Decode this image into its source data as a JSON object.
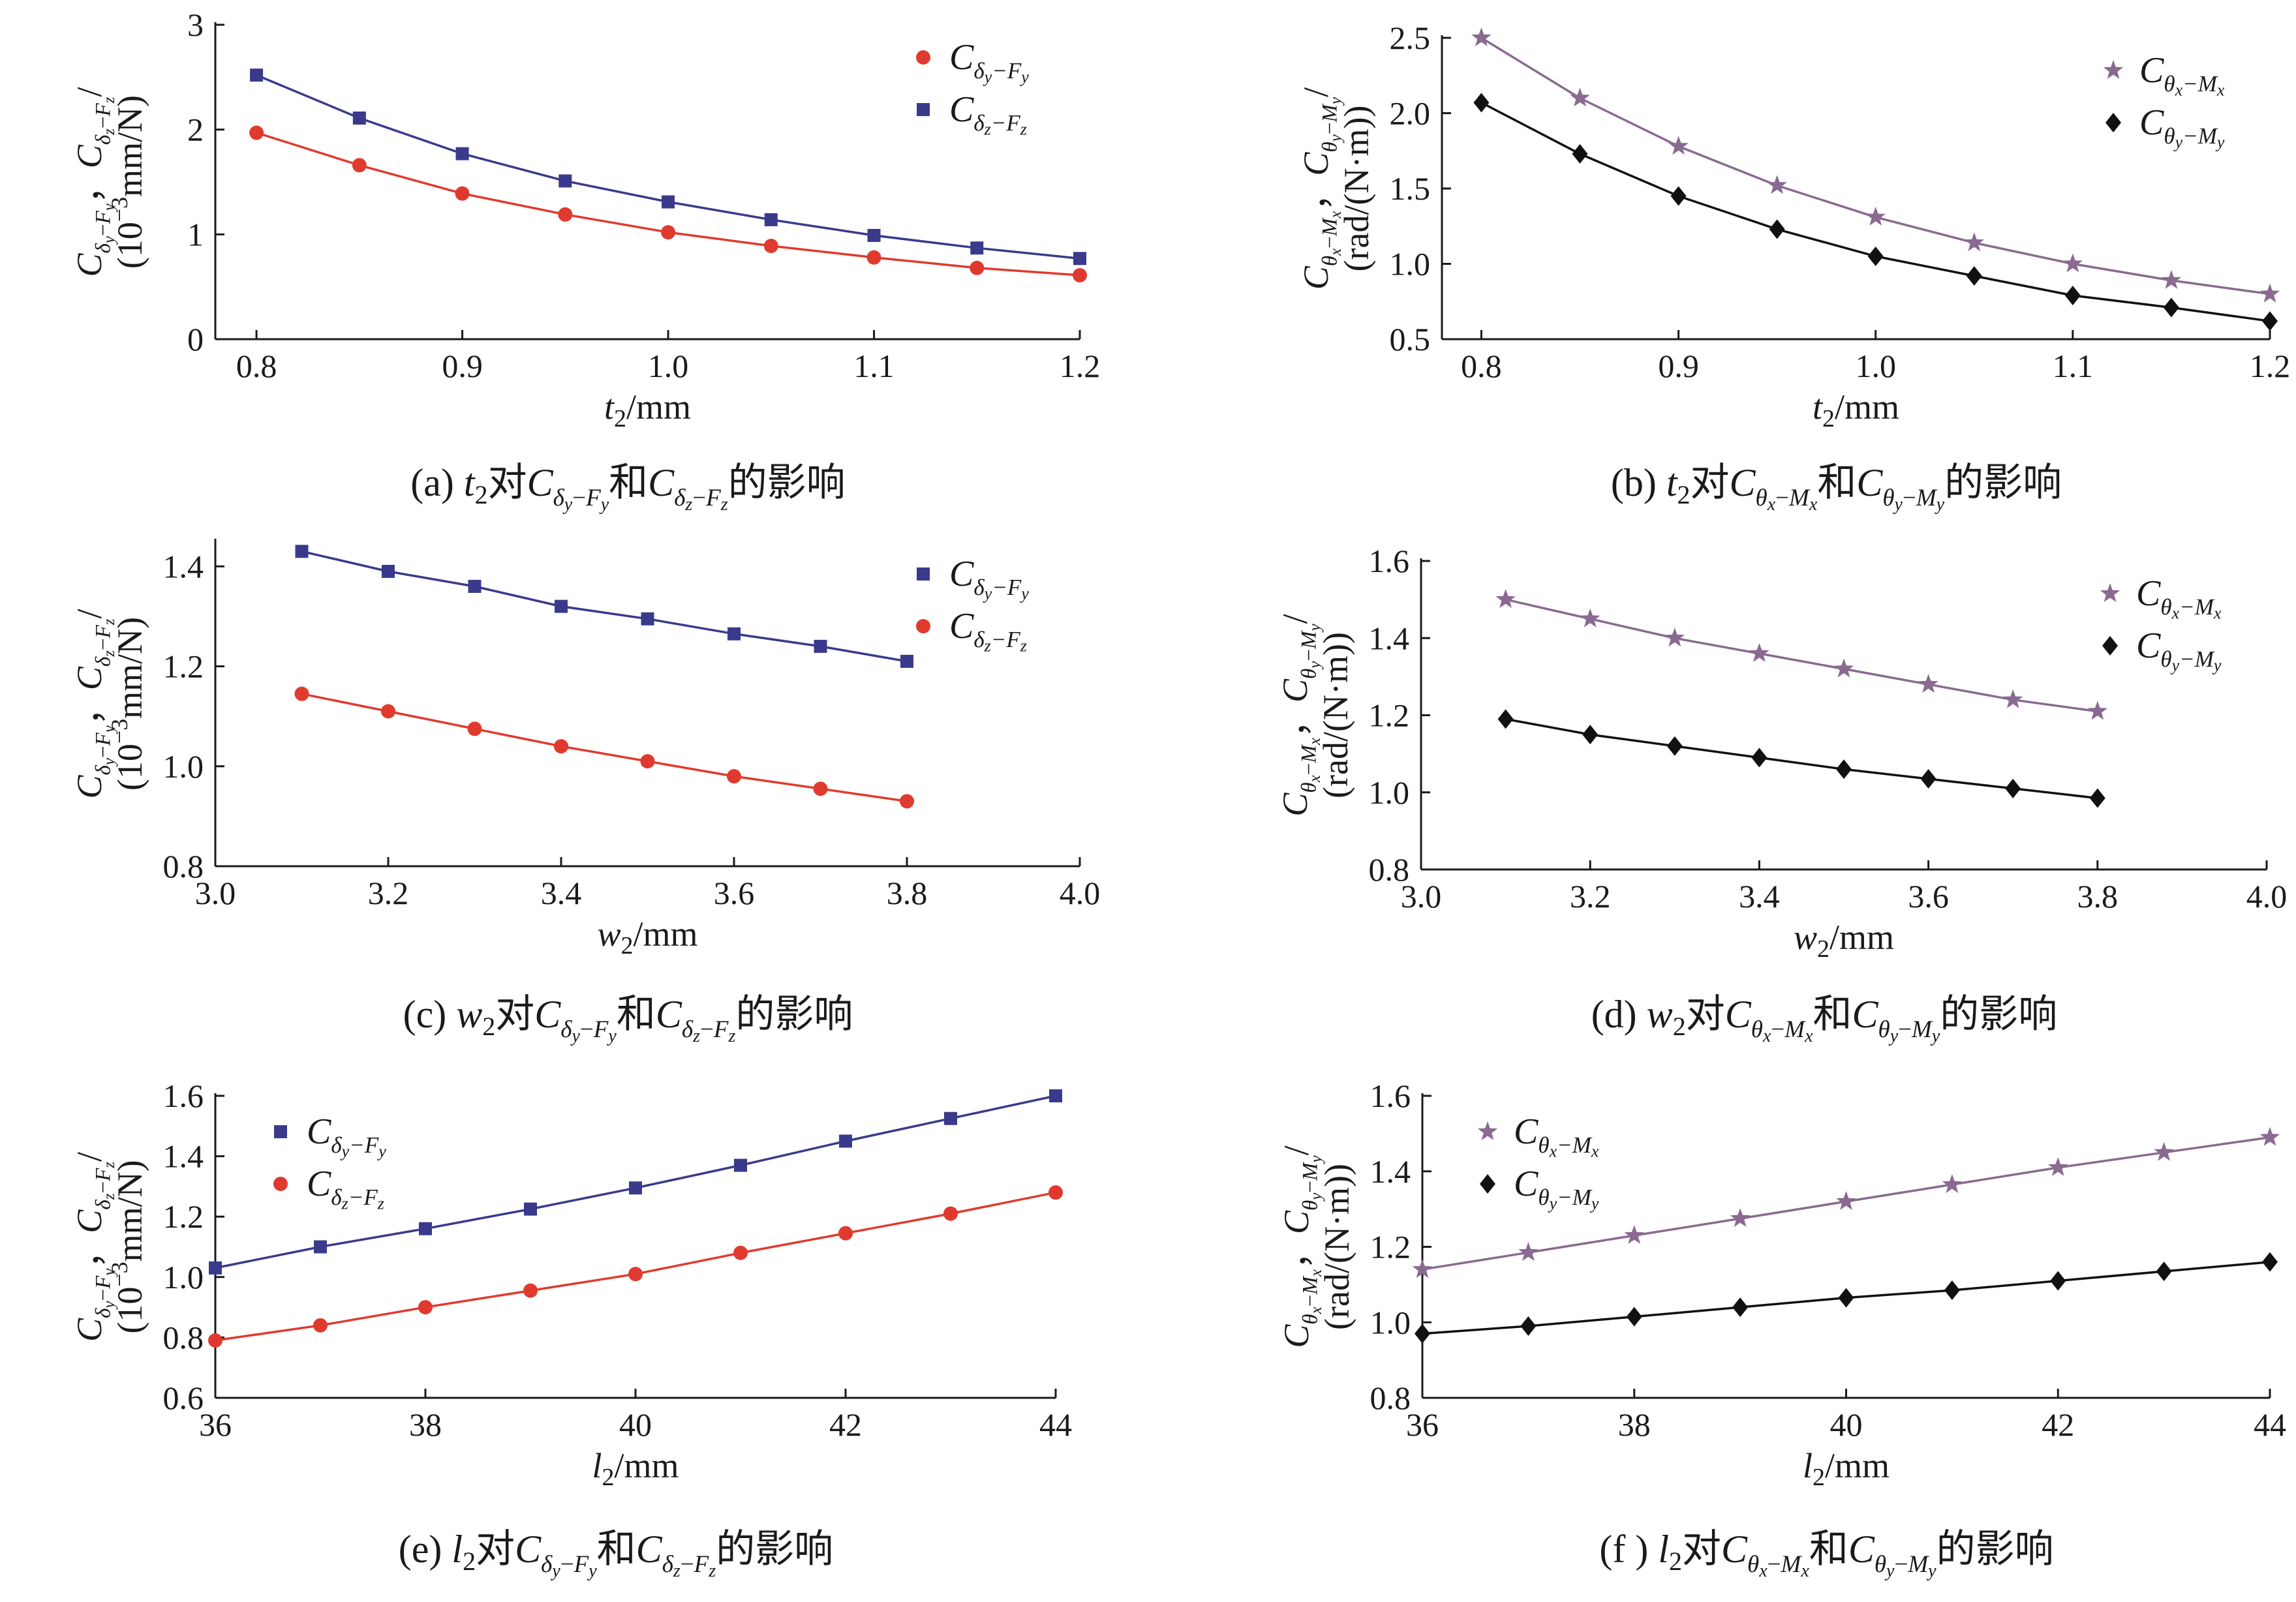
{
  "chart_data": [
    {
      "id": "a",
      "type": "line",
      "caption": {
        "tag": "(a)",
        "var": "t",
        "sub": "2",
        "s1": "δ",
        "s1sub": "y",
        "s1f": "F",
        "s1fsub": "y",
        "s2": "δ",
        "s2sub": "z",
        "s2f": "F",
        "s2fsub": "z",
        "mid": "对",
        "and": "和",
        "tail": "的影响"
      },
      "x": [
        0.8,
        0.85,
        0.9,
        0.95,
        1.0,
        1.05,
        1.1,
        1.15,
        1.2
      ],
      "xlim": [
        0.78,
        1.2
      ],
      "xticks": [
        0.8,
        0.9,
        1.0,
        1.1,
        1.2
      ],
      "xtick_labels": [
        "0.8",
        "0.9",
        "1.0",
        "1.1",
        "1.2"
      ],
      "xlabel": {
        "var": "t",
        "sub": "2",
        "unit": "/mm"
      },
      "ylim": [
        0,
        3
      ],
      "yticks": [
        0,
        1,
        2,
        3
      ],
      "ytick_labels": [
        "0",
        "1",
        "2",
        "3"
      ],
      "ylabel": {
        "line1": "Cδy−Fy，Cδz−Fz/",
        "line2": "(10−3mm/N)"
      },
      "legend_position": "top-right",
      "series": [
        {
          "name": "Cδy−Fy",
          "marker": "circle",
          "color": "#e03a2f",
          "values": [
            1.97,
            1.66,
            1.39,
            1.19,
            1.02,
            0.89,
            0.78,
            0.68,
            0.61
          ]
        },
        {
          "name": "Cδz−Fz",
          "marker": "square",
          "color": "#3a3a8c",
          "values": [
            2.52,
            2.11,
            1.77,
            1.51,
            1.31,
            1.14,
            0.99,
            0.87,
            0.77
          ]
        }
      ]
    },
    {
      "id": "b",
      "type": "line",
      "caption": {
        "tag": "(b)",
        "var": "t",
        "sub": "2",
        "s1": "θ",
        "s1sub": "x",
        "s1f": "M",
        "s1fsub": "x",
        "s2": "θ",
        "s2sub": "y",
        "s2f": "M",
        "s2fsub": "y",
        "mid": "对",
        "and": "和",
        "tail": "的影响"
      },
      "x": [
        0.8,
        0.85,
        0.9,
        0.95,
        1.0,
        1.05,
        1.1,
        1.15,
        1.2
      ],
      "xlim": [
        0.78,
        1.2
      ],
      "xticks": [
        0.8,
        0.9,
        1.0,
        1.1,
        1.2
      ],
      "xtick_labels": [
        "0.8",
        "0.9",
        "1.0",
        "1.1",
        "1.2"
      ],
      "xlabel": {
        "var": "t",
        "sub": "2",
        "unit": "/mm"
      },
      "ylim": [
        0.5,
        2.5
      ],
      "yticks": [
        0.5,
        1.0,
        1.5,
        2.0,
        2.5
      ],
      "ytick_labels": [
        "0.5",
        "1.0",
        "1.5",
        "2.0",
        "2.5"
      ],
      "ylabel": {
        "line1": "Cθx−Mx，Cθy−My/",
        "line2": "(rad/(N·m))"
      },
      "legend_position": "top-right",
      "series": [
        {
          "name": "Cθx−Mx",
          "marker": "star",
          "color": "#8a6a90",
          "values": [
            2.5,
            2.1,
            1.78,
            1.52,
            1.31,
            1.14,
            1.0,
            0.89,
            0.8
          ]
        },
        {
          "name": "Cθy−My",
          "marker": "diamond",
          "color": "#111111",
          "values": [
            2.07,
            1.73,
            1.45,
            1.23,
            1.05,
            0.92,
            0.79,
            0.71,
            0.62
          ]
        }
      ]
    },
    {
      "id": "c",
      "type": "line",
      "caption": {
        "tag": "(c)",
        "var": "w",
        "sub": "2",
        "s1": "δ",
        "s1sub": "y",
        "s1f": "F",
        "s1fsub": "y",
        "s2": "δ",
        "s2sub": "z",
        "s2f": "F",
        "s2fsub": "z",
        "mid": "对",
        "and": "和",
        "tail": "的影响"
      },
      "x": [
        3.1,
        3.2,
        3.3,
        3.4,
        3.5,
        3.6,
        3.7,
        3.8
      ],
      "xlim": [
        3.0,
        4.0
      ],
      "xticks": [
        3.0,
        3.2,
        3.4,
        3.6,
        3.8,
        4.0
      ],
      "xtick_labels": [
        "3.0",
        "3.2",
        "3.4",
        "3.6",
        "3.8",
        "4.0"
      ],
      "xlabel": {
        "var": "w",
        "sub": "2",
        "unit": "/mm"
      },
      "ylim": [
        0.8,
        1.45
      ],
      "yticks": [
        0.8,
        1.0,
        1.2,
        1.4
      ],
      "ytick_labels": [
        "0.8",
        "1.0",
        "1.2",
        "1.4"
      ],
      "ylabel": {
        "line1": "Cδy−Fy，Cδz−Fz/",
        "line2": "(10−3mm/N)"
      },
      "legend_position": "top-right",
      "series": [
        {
          "name": "Cδy−Fy",
          "marker": "square",
          "color": "#3a3a8c",
          "values": [
            1.43,
            1.39,
            1.36,
            1.32,
            1.295,
            1.265,
            1.24,
            1.21
          ]
        },
        {
          "name": "Cδz−Fz",
          "marker": "circle",
          "color": "#e03a2f",
          "values": [
            1.145,
            1.11,
            1.075,
            1.04,
            1.01,
            0.98,
            0.955,
            0.93
          ]
        }
      ]
    },
    {
      "id": "d",
      "type": "line",
      "caption": {
        "tag": "(d)",
        "var": "w",
        "sub": "2",
        "s1": "θ",
        "s1sub": "x",
        "s1f": "M",
        "s1fsub": "x",
        "s2": "θ",
        "s2sub": "y",
        "s2f": "M",
        "s2fsub": "y",
        "mid": "对",
        "and": "和",
        "tail": "的影响"
      },
      "x": [
        3.1,
        3.2,
        3.3,
        3.4,
        3.5,
        3.6,
        3.7,
        3.8
      ],
      "xlim": [
        3.0,
        4.0
      ],
      "xticks": [
        3.0,
        3.2,
        3.4,
        3.6,
        3.8,
        4.0
      ],
      "xtick_labels": [
        "3.0",
        "3.2",
        "3.4",
        "3.6",
        "3.8",
        "4.0"
      ],
      "xlabel": {
        "var": "w",
        "sub": "2",
        "unit": "/mm"
      },
      "ylim": [
        0.8,
        1.6
      ],
      "yticks": [
        0.8,
        1.0,
        1.2,
        1.4,
        1.6
      ],
      "ytick_labels": [
        "0.8",
        "1.0",
        "1.2",
        "1.4",
        "1.6"
      ],
      "ylabel": {
        "line1": "Cθx−Mx，Cθy−My/",
        "line2": "(rad/(N·m))"
      },
      "legend_position": "top-right",
      "series": [
        {
          "name": "Cθx−Mx",
          "marker": "star",
          "color": "#8a6a90",
          "values": [
            1.5,
            1.45,
            1.4,
            1.36,
            1.32,
            1.28,
            1.24,
            1.21
          ]
        },
        {
          "name": "Cθy−My",
          "marker": "diamond",
          "color": "#111111",
          "values": [
            1.19,
            1.15,
            1.12,
            1.09,
            1.06,
            1.035,
            1.01,
            0.985
          ]
        }
      ]
    },
    {
      "id": "e",
      "type": "line",
      "caption": {
        "tag": "(e)",
        "var": "l",
        "sub": "2",
        "s1": "δ",
        "s1sub": "y",
        "s1f": "F",
        "s1fsub": "y",
        "s2": "δ",
        "s2sub": "z",
        "s2f": "F",
        "s2fsub": "z",
        "mid": "对",
        "and": "和",
        "tail": "的影响"
      },
      "x": [
        36,
        37,
        38,
        39,
        40,
        41,
        42,
        43,
        44
      ],
      "xlim": [
        36,
        44
      ],
      "xticks": [
        36,
        38,
        40,
        42,
        44
      ],
      "xtick_labels": [
        "36",
        "38",
        "40",
        "42",
        "44"
      ],
      "xlabel": {
        "var": "l",
        "sub": "2",
        "unit": "/mm"
      },
      "ylim": [
        0.6,
        1.6
      ],
      "yticks": [
        0.6,
        0.8,
        1.0,
        1.2,
        1.4,
        1.6
      ],
      "ytick_labels": [
        "0.6",
        "0.8",
        "1.0",
        "1.2",
        "1.4",
        "1.6"
      ],
      "ylabel": {
        "line1": "Cδy−Fy，Cδz−Fz/",
        "line2": "(10−3mm/N)"
      },
      "legend_position": "top-left",
      "series": [
        {
          "name": "Cδy−Fy",
          "marker": "square",
          "color": "#3a3a8c",
          "values": [
            1.03,
            1.1,
            1.16,
            1.225,
            1.295,
            1.37,
            1.45,
            1.525,
            1.6
          ]
        },
        {
          "name": "Cδz−Fz",
          "marker": "circle",
          "color": "#e03a2f",
          "values": [
            0.79,
            0.84,
            0.9,
            0.955,
            1.01,
            1.08,
            1.145,
            1.21,
            1.28
          ]
        }
      ]
    },
    {
      "id": "f",
      "type": "line",
      "caption": {
        "tag": "(f )",
        "var": "l",
        "sub": "2",
        "s1": "θ",
        "s1sub": "x",
        "s1f": "M",
        "s1fsub": "x",
        "s2": "θ",
        "s2sub": "y",
        "s2f": "M",
        "s2fsub": "y",
        "mid": "对",
        "and": "和",
        "tail": "的影响"
      },
      "x": [
        36,
        37,
        38,
        39,
        40,
        41,
        42,
        43,
        44
      ],
      "xlim": [
        36,
        44
      ],
      "xticks": [
        36,
        38,
        40,
        42,
        44
      ],
      "xtick_labels": [
        "36",
        "38",
        "40",
        "42",
        "44"
      ],
      "xlabel": {
        "var": "l",
        "sub": "2",
        "unit": "/mm"
      },
      "ylim": [
        0.8,
        1.6
      ],
      "yticks": [
        0.8,
        1.0,
        1.2,
        1.4,
        1.6
      ],
      "ytick_labels": [
        "0.8",
        "1.0",
        "1.2",
        "1.4",
        "1.6"
      ],
      "ylabel": {
        "line1": "Cθx−Mx，Cθy−My/",
        "line2": "(rad/(N·m))"
      },
      "legend_position": "top-left",
      "series": [
        {
          "name": "Cθx−Mx",
          "marker": "star",
          "color": "#8a6a90",
          "values": [
            1.14,
            1.185,
            1.23,
            1.275,
            1.32,
            1.365,
            1.41,
            1.45,
            1.49
          ]
        },
        {
          "name": "Cθy−My",
          "marker": "diamond",
          "color": "#111111",
          "values": [
            0.97,
            0.99,
            1.015,
            1.04,
            1.065,
            1.085,
            1.11,
            1.135,
            1.16
          ]
        }
      ]
    }
  ]
}
